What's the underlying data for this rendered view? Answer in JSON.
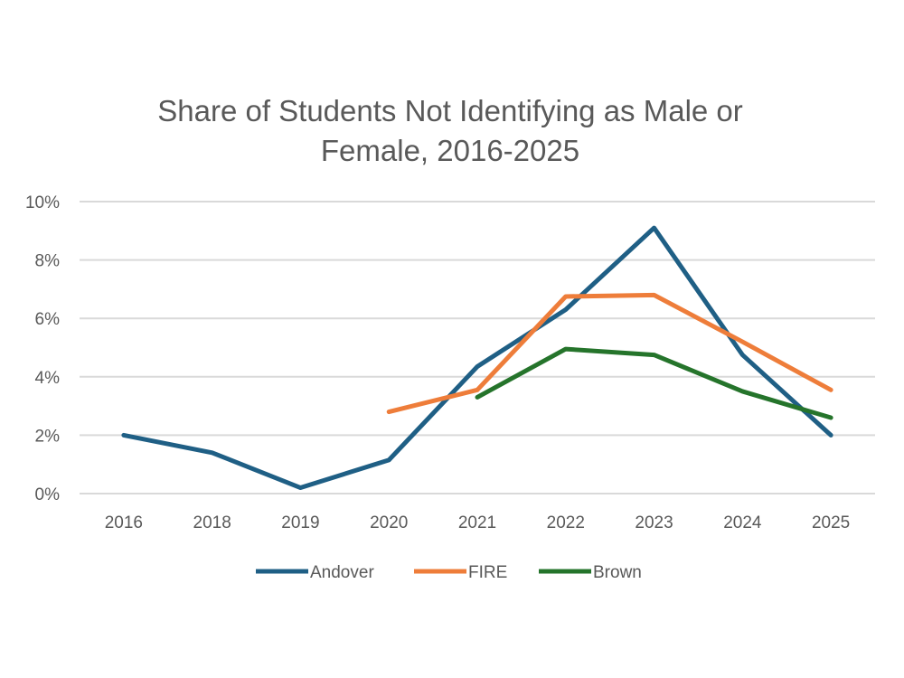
{
  "chart_data": {
    "type": "line",
    "title_lines": [
      "Share of Students Not Identifying as Male or",
      "Female, 2016-2025"
    ],
    "categories": [
      "2016",
      "2018",
      "2019",
      "2020",
      "2021",
      "2022",
      "2023",
      "2024",
      "2025"
    ],
    "y_ticks": [
      "0%",
      "2%",
      "4%",
      "6%",
      "8%",
      "10%"
    ],
    "ylim": [
      0,
      10
    ],
    "y_unit": "%",
    "grid": true,
    "legend_position": "bottom",
    "series": [
      {
        "name": "Andover",
        "color": "#1f5f85",
        "values": [
          2.0,
          1.4,
          0.2,
          1.15,
          4.35,
          6.3,
          9.1,
          4.75,
          2.0
        ]
      },
      {
        "name": "FIRE",
        "color": "#ee7d3a",
        "values": [
          null,
          null,
          null,
          2.8,
          3.55,
          6.75,
          6.8,
          5.2,
          3.55
        ]
      },
      {
        "name": "Brown",
        "color": "#25742b",
        "values": [
          null,
          null,
          null,
          null,
          3.3,
          4.95,
          4.75,
          3.5,
          2.6
        ]
      }
    ]
  }
}
